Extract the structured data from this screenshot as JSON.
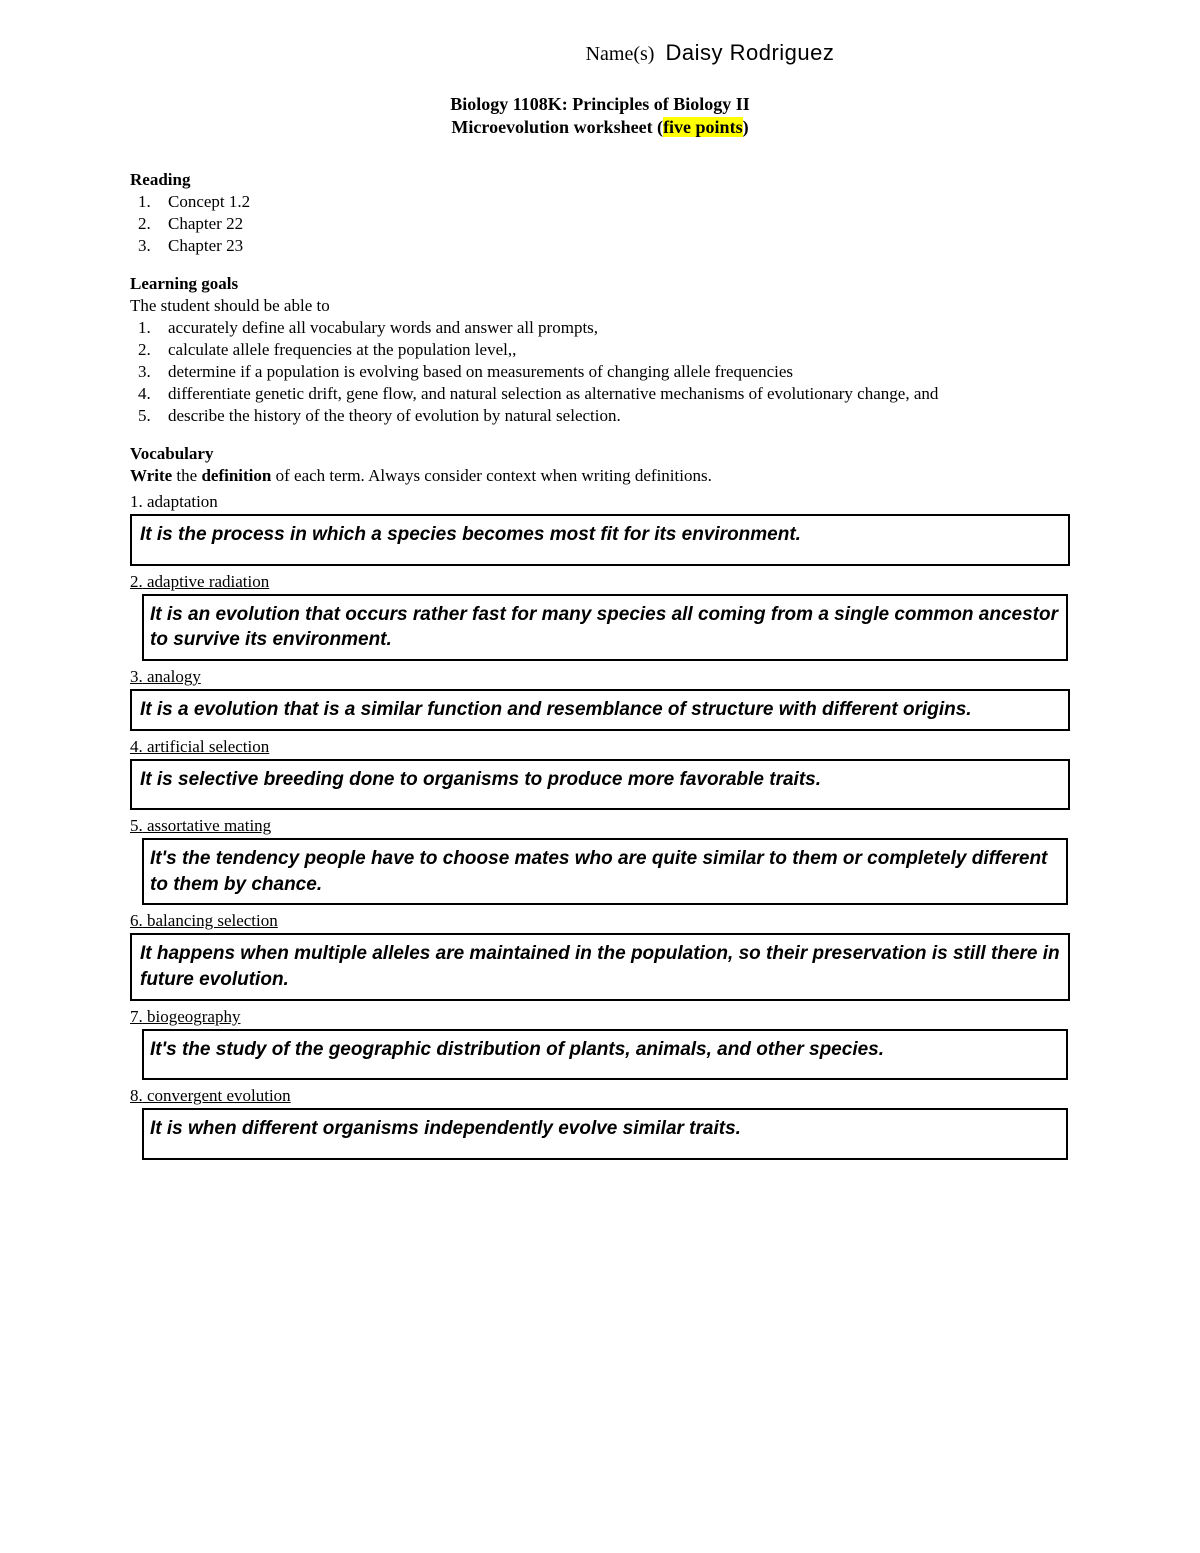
{
  "header": {
    "name_label": "Name(s)",
    "name_value": "Daisy Rodriguez",
    "course_title": "Biology 1108K: Principles of Biology II",
    "subtitle_prefix": "Microevolution worksheet (",
    "subtitle_highlight": "five points",
    "subtitle_suffix": ")"
  },
  "reading": {
    "heading": "Reading",
    "items": [
      "Concept 1.2",
      "Chapter 22",
      "Chapter 23"
    ]
  },
  "goals": {
    "heading": "Learning goals",
    "intro": "The student should be able to",
    "items": [
      "accurately define all vocabulary words and answer all prompts,",
      "calculate allele frequencies at the population level,,",
      "determine if a population is evolving based on measurements of changing allele frequencies",
      "differentiate genetic drift, gene flow, and natural selection as alternative mechanisms of evolutionary change, and",
      "describe the history of the theory of evolution by natural selection."
    ]
  },
  "vocab": {
    "heading": "Vocabulary",
    "instruction_prefix": "Write",
    "instruction_mid": " the ",
    "instruction_bold": "definition",
    "instruction_suffix": " of each term. Always consider context when writing definitions.",
    "items": [
      {
        "num": "1.",
        "term": "adaptation",
        "answer": "It is the process in which a species becomes most fit for its environment."
      },
      {
        "num": "2.",
        "term": "adaptive radiation",
        "answer": "It is an evolution that occurs rather fast for many species all coming from a single common ancestor to survive its environment."
      },
      {
        "num": "3.",
        "term": "analogy",
        "answer": "It is a evolution that is a similar function and resemblance of structure with different origins."
      },
      {
        "num": "4.",
        "term": "artificial selection",
        "answer": "It is selective breeding done to organisms to produce more favorable traits."
      },
      {
        "num": "5.",
        "term": "assortative mating",
        "answer": "It's the tendency people have to choose mates who are quite similar to them or completely different to them by chance."
      },
      {
        "num": "6.",
        "term": "balancing selection",
        "answer": "It happens when multiple alleles are maintained in the population, so their preservation is still there in future evolution."
      },
      {
        "num": "7.",
        "term": "biogeography",
        "answer": "It's the study of the geographic distribution of plants, animals, and other species."
      },
      {
        "num": "8.",
        "term": "convergent evolution",
        "answer": "It is when different organisms independently evolve similar traits."
      }
    ]
  }
}
